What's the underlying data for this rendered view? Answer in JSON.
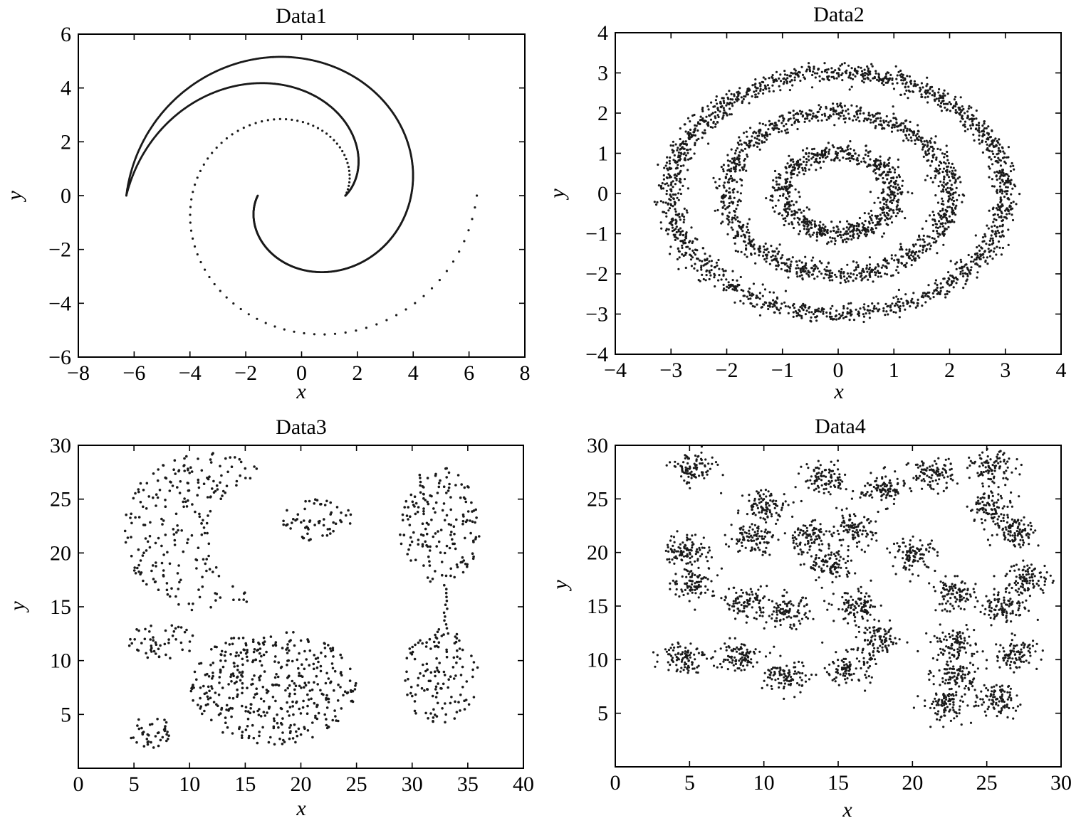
{
  "chart_data": [
    {
      "type": "scatter",
      "title": "Data1",
      "xlabel": "x",
      "ylabel": "y",
      "xlim": [
        -8,
        8
      ],
      "ylim": [
        -6,
        6
      ],
      "xticks": [
        -8,
        -6,
        -4,
        -2,
        0,
        2,
        4,
        6,
        8
      ],
      "yticks": [
        -6,
        -4,
        -2,
        0,
        2,
        4,
        6
      ],
      "xticklabels": [
        "−8",
        "−6",
        "−4",
        "−2",
        "0",
        "2",
        "4",
        "6",
        "8"
      ],
      "yticklabels": [
        "−6",
        "−4",
        "−2",
        "0",
        "2",
        "4",
        "6"
      ],
      "grid": false,
      "series": [
        {
          "kind": "spiral",
          "start_angle_deg": 0,
          "r_start": 1.57,
          "r_end": 6.28,
          "turns": 1.0,
          "points": 90,
          "density": "sparse"
        },
        {
          "kind": "spiral",
          "start_angle_deg": 180,
          "r_start": 1.57,
          "r_end": 6.28,
          "turns": 1.0,
          "points": 1200,
          "density": "dense"
        },
        {
          "kind": "spiral",
          "start_angle_deg": 0,
          "r_start": 1.57,
          "r_end": 6.28,
          "turns": 0.5,
          "points": 600,
          "density": "dense",
          "note": "outer sweep to (6.3,0)"
        }
      ]
    },
    {
      "type": "scatter",
      "title": "Data2",
      "xlabel": "x",
      "ylabel": "y",
      "xlim": [
        -4,
        4
      ],
      "ylim": [
        -4,
        4
      ],
      "xticks": [
        -4,
        -3,
        -2,
        -1,
        0,
        1,
        2,
        3,
        4
      ],
      "yticks": [
        -4,
        -3,
        -2,
        -1,
        0,
        1,
        2,
        3,
        4
      ],
      "xticklabels": [
        "−4",
        "−3",
        "−2",
        "−1",
        "0",
        "1",
        "2",
        "3",
        "4"
      ],
      "yticklabels": [
        "−4",
        "−3",
        "−2",
        "−1",
        "0",
        "1",
        "2",
        "3",
        "4"
      ],
      "grid": false,
      "series": [
        {
          "kind": "ring",
          "cx": 0,
          "cy": 0,
          "r": 1.0,
          "noise": 0.12,
          "points": 700
        },
        {
          "kind": "ring",
          "cx": 0,
          "cy": 0,
          "r": 2.0,
          "noise": 0.12,
          "points": 1100
        },
        {
          "kind": "ring",
          "cx": 0,
          "cy": 0,
          "r": 3.0,
          "noise": 0.12,
          "points": 1600
        }
      ]
    },
    {
      "type": "scatter",
      "title": "Data3",
      "xlabel": "x",
      "ylabel": "y",
      "xlim": [
        0,
        40
      ],
      "ylim": [
        0,
        30
      ],
      "xticks": [
        0,
        5,
        10,
        15,
        20,
        25,
        30,
        35,
        40
      ],
      "yticks": [
        5,
        10,
        15,
        20,
        25,
        30
      ],
      "xticklabels": [
        "0",
        "5",
        "10",
        "15",
        "20",
        "25",
        "30",
        "35",
        "40"
      ],
      "yticklabels": [
        "5",
        "10",
        "15",
        "20",
        "25",
        "30"
      ],
      "grid": false,
      "series": [
        {
          "kind": "crescent",
          "cx": 11.5,
          "cy": 22.0,
          "r_outer": 7.5,
          "cut_cx": 18.0,
          "cut_cy": 21.5,
          "cut_r": 6.0,
          "points": 230
        },
        {
          "kind": "ellipse",
          "cx": 21.5,
          "cy": 23.0,
          "rx": 3.2,
          "ry": 2.0,
          "points": 60
        },
        {
          "kind": "ellipse",
          "cx": 32.5,
          "cy": 22.5,
          "rx": 3.7,
          "ry": 5.5,
          "points": 170
        },
        {
          "kind": "ellipse",
          "cx": 32.5,
          "cy": 8.5,
          "rx": 3.5,
          "ry": 4.5,
          "points": 130
        },
        {
          "kind": "line",
          "x0": 33.0,
          "y0": 17.0,
          "x1": 33.0,
          "y1": 13.0,
          "points": 12
        },
        {
          "kind": "ellipse",
          "cx": 7.5,
          "cy": 11.8,
          "rx": 3.0,
          "ry": 1.8,
          "points": 50
        },
        {
          "kind": "ellipse",
          "cx": 17.5,
          "cy": 7.5,
          "rx": 7.5,
          "ry": 5.3,
          "points": 420
        },
        {
          "kind": "ellipse",
          "cx": 6.5,
          "cy": 3.4,
          "rx": 2.0,
          "ry": 1.5,
          "points": 40
        }
      ]
    },
    {
      "type": "scatter",
      "title": "Data4",
      "xlabel": "x",
      "ylabel": "y",
      "xlim": [
        0,
        30
      ],
      "ylim": [
        0,
        30
      ],
      "xticks": [
        0,
        5,
        10,
        15,
        20,
        25,
        30
      ],
      "yticks": [
        5,
        10,
        15,
        20,
        25,
        30
      ],
      "xticklabels": [
        "0",
        "5",
        "10",
        "15",
        "20",
        "25",
        "30"
      ],
      "yticklabels": [
        "5",
        "10",
        "15",
        "20",
        "25",
        "30"
      ],
      "grid": false,
      "series": [
        {
          "kind": "gaussian",
          "points": 3000,
          "sd": 0.75,
          "centers": [
            [
              5.2,
              27.8
            ],
            [
              14.2,
              26.8
            ],
            [
              18.0,
              25.9
            ],
            [
              21.3,
              27.3
            ],
            [
              25.4,
              27.8
            ],
            [
              10.2,
              24.4
            ],
            [
              25.3,
              24.2
            ],
            [
              4.8,
              20.2
            ],
            [
              9.2,
              21.4
            ],
            [
              12.9,
              21.4
            ],
            [
              16.0,
              22.0
            ],
            [
              20.1,
              19.8
            ],
            [
              27.0,
              22.0
            ],
            [
              5.3,
              17.2
            ],
            [
              14.5,
              18.8
            ],
            [
              8.8,
              15.3
            ],
            [
              11.6,
              14.4
            ],
            [
              16.3,
              14.9
            ],
            [
              22.8,
              16.0
            ],
            [
              27.8,
              17.6
            ],
            [
              26.2,
              15.0
            ],
            [
              17.8,
              11.8
            ],
            [
              22.7,
              11.5
            ],
            [
              4.6,
              10.3
            ],
            [
              8.2,
              10.3
            ],
            [
              11.6,
              8.4
            ],
            [
              15.7,
              9.2
            ],
            [
              22.9,
              8.5
            ],
            [
              27.0,
              10.5
            ],
            [
              22.2,
              5.8
            ],
            [
              25.6,
              6.2
            ]
          ]
        }
      ]
    }
  ]
}
